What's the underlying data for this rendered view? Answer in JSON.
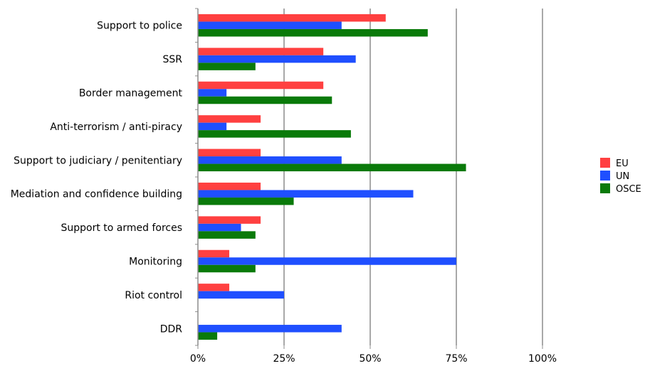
{
  "chart_data": {
    "type": "bar",
    "orientation": "horizontal",
    "categories": [
      "Support to police",
      "SSR",
      "Border management",
      "Anti-terrorism / anti-piracy",
      "Support to judiciary / penitentiary",
      "Mediation and confidence building",
      "Support to armed forces",
      "Monitoring",
      "Riot control",
      "DDR"
    ],
    "series": [
      {
        "name": "EU",
        "color": "#ff4040",
        "values": [
          54.5,
          36.4,
          36.4,
          18.2,
          18.2,
          18.2,
          18.2,
          9.1,
          9.1,
          0
        ]
      },
      {
        "name": "UN",
        "color": "#1f4fff",
        "values": [
          41.7,
          45.8,
          8.3,
          8.3,
          41.7,
          62.5,
          12.5,
          75.0,
          25.0,
          41.7
        ]
      },
      {
        "name": "OSCE",
        "color": "#0a7a0a",
        "values": [
          66.7,
          16.7,
          38.9,
          44.4,
          77.8,
          27.8,
          16.7,
          16.7,
          0,
          5.6
        ]
      }
    ],
    "x_ticks": [
      "0%",
      "25%",
      "50%",
      "75%",
      "100%"
    ],
    "xlim": [
      0,
      100
    ],
    "grid": true,
    "legend_position": "right"
  }
}
